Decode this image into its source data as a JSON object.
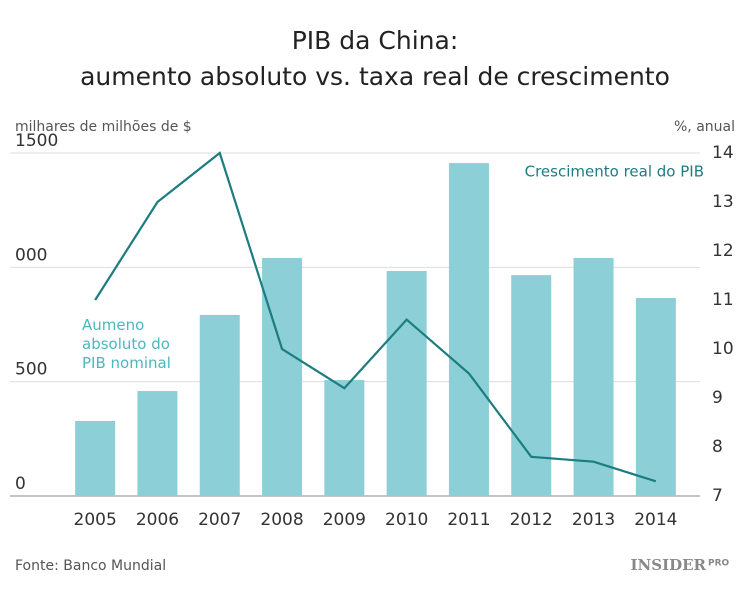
{
  "chart_data": {
    "type": "bar-line",
    "title": "PIB da China:",
    "subtitle": "aumento absoluto vs. taxa real de crescimento",
    "ylabel": "milhares de milhões de $",
    "y2label": "%, anual",
    "categories": [
      "2005",
      "2006",
      "2007",
      "2008",
      "2009",
      "2010",
      "2011",
      "2012",
      "2013",
      "2014"
    ],
    "series": [
      {
        "name": "Aumeno absoluto do PIB nominal",
        "type": "bar",
        "color": "#8ccfd6",
        "values": [
          328,
          459,
          792,
          1041,
          507,
          984,
          1456,
          966,
          1041,
          866
        ]
      },
      {
        "name": "Crescimento real do PIB",
        "type": "line",
        "axis": "y2",
        "color": "#1c7d80",
        "values": [
          11.0,
          13.0,
          14.0,
          10.0,
          9.2,
          10.6,
          9.5,
          7.8,
          7.7,
          7.3
        ]
      }
    ],
    "ylim": [
      0,
      1500
    ],
    "yticks": [
      0,
      500,
      {
        "value": 1000,
        "label": "000"
      },
      1500
    ],
    "y2lim": [
      7,
      14
    ],
    "y2ticks": [
      7,
      8,
      9,
      10,
      11,
      12,
      13,
      14
    ],
    "grid": true,
    "source": "Fonte: Banco Mundial",
    "logo": "INSIDER",
    "logo_badge": "PRO"
  }
}
